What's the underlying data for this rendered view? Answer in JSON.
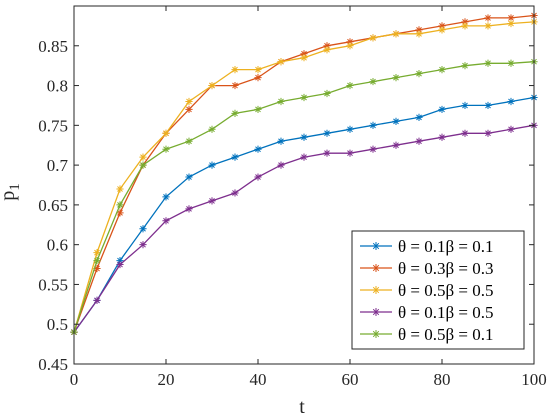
{
  "chart_data": {
    "type": "line",
    "xlabel": "t",
    "ylabel": "p",
    "ylabel_subscript": "1",
    "xlim": [
      0,
      100
    ],
    "ylim": [
      0.45,
      0.9
    ],
    "xticks": [
      0,
      20,
      40,
      60,
      80,
      100
    ],
    "yticks": [
      0.45,
      0.5,
      0.55,
      0.6,
      0.65,
      0.7,
      0.75,
      0.8,
      0.85
    ],
    "ytick_labels": [
      "0.45",
      "0.5",
      "0.55",
      "0.6",
      "0.65",
      "0.7",
      "0.75",
      "0.8",
      "0.85"
    ],
    "grid": false,
    "legend_position": "bottom-right",
    "marker": "asterisk",
    "x": [
      0,
      5,
      10,
      15,
      20,
      25,
      30,
      35,
      40,
      45,
      50,
      55,
      60,
      65,
      70,
      75,
      80,
      85,
      90,
      95,
      100
    ],
    "series": [
      {
        "name": "θ = 0.1β = 0.1",
        "color": "#0072BD",
        "values": [
          0.49,
          0.53,
          0.58,
          0.62,
          0.66,
          0.685,
          0.7,
          0.71,
          0.72,
          0.73,
          0.735,
          0.74,
          0.745,
          0.75,
          0.755,
          0.76,
          0.77,
          0.775,
          0.775,
          0.78,
          0.785
        ]
      },
      {
        "name": "θ = 0.3β = 0.3",
        "color": "#D95319",
        "values": [
          0.49,
          0.57,
          0.64,
          0.7,
          0.74,
          0.77,
          0.8,
          0.8,
          0.81,
          0.83,
          0.84,
          0.85,
          0.855,
          0.86,
          0.865,
          0.87,
          0.875,
          0.88,
          0.885,
          0.885,
          0.888
        ]
      },
      {
        "name": "θ = 0.5β = 0.5",
        "color": "#EDB120",
        "values": [
          0.49,
          0.59,
          0.67,
          0.71,
          0.74,
          0.78,
          0.8,
          0.82,
          0.82,
          0.83,
          0.835,
          0.845,
          0.85,
          0.86,
          0.865,
          0.865,
          0.87,
          0.875,
          0.875,
          0.878,
          0.88
        ]
      },
      {
        "name": "θ = 0.1β = 0.5",
        "color": "#7E2F8E",
        "values": [
          0.49,
          0.53,
          0.575,
          0.6,
          0.63,
          0.645,
          0.655,
          0.665,
          0.685,
          0.7,
          0.71,
          0.715,
          0.715,
          0.72,
          0.725,
          0.73,
          0.735,
          0.74,
          0.74,
          0.745,
          0.75
        ]
      },
      {
        "name": "θ = 0.5β = 0.1",
        "color": "#77AC30",
        "values": [
          0.49,
          0.58,
          0.65,
          0.7,
          0.72,
          0.73,
          0.745,
          0.765,
          0.77,
          0.78,
          0.785,
          0.79,
          0.8,
          0.805,
          0.81,
          0.815,
          0.82,
          0.825,
          0.828,
          0.828,
          0.83
        ]
      }
    ]
  }
}
